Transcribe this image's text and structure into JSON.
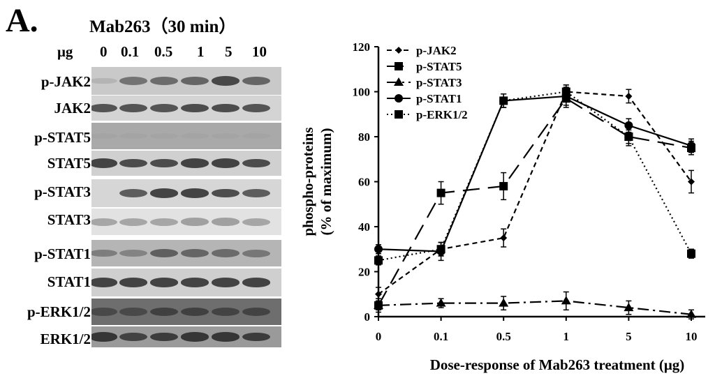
{
  "panel_label": "A.",
  "blot": {
    "treatment_title": "Mab263（30 min）",
    "dose_unit_label": "μg",
    "doses": [
      "0",
      "0.1",
      "0.5",
      "1",
      "5",
      "10"
    ],
    "rows": [
      {
        "label": "p-JAK2",
        "background": "#c9c9c9",
        "band_color": "#3a3a3a",
        "band_intensity": [
          0.15,
          0.6,
          0.65,
          0.7,
          0.9,
          0.7
        ]
      },
      {
        "label": "JAK2",
        "background": "#d4d4d4",
        "band_color": "#2a2a2a",
        "band_intensity": [
          0.75,
          0.75,
          0.75,
          0.8,
          0.8,
          0.75
        ]
      },
      {
        "label": "p-STAT5",
        "background": "#a9a9a9",
        "band_color": "#555555",
        "band_intensity": [
          0.05,
          0.05,
          0.05,
          0.05,
          0.05,
          0.05
        ]
      },
      {
        "label": "STAT5",
        "background": "#d0d0d0",
        "band_color": "#2a2a2a",
        "band_intensity": [
          0.85,
          0.8,
          0.8,
          0.85,
          0.85,
          0.8
        ]
      },
      {
        "label": "p-STAT3",
        "background": "#d6d6d6",
        "band_color": "#2a2a2a",
        "band_intensity": [
          0.0,
          0.7,
          0.85,
          0.85,
          0.8,
          0.7
        ]
      },
      {
        "label": "STAT3",
        "background": "#e2e2e2",
        "band_color": "#6a6a6a",
        "band_intensity": [
          0.5,
          0.5,
          0.5,
          0.55,
          0.55,
          0.5
        ]
      },
      {
        "label": "p-STAT1",
        "background": "#b5b5b5",
        "band_color": "#3a3a3a",
        "band_intensity": [
          0.45,
          0.4,
          0.7,
          0.65,
          0.6,
          0.5
        ]
      },
      {
        "label": "STAT1",
        "background": "#cfcfcf",
        "band_color": "#2a2a2a",
        "band_intensity": [
          0.85,
          0.85,
          0.85,
          0.85,
          0.85,
          0.85
        ]
      },
      {
        "label": "p-ERK1/2",
        "background": "#6e6e6e",
        "band_color": "#2c2c2c",
        "band_intensity": [
          0.55,
          0.55,
          0.7,
          0.7,
          0.65,
          0.65
        ]
      },
      {
        "label": "ERK1/2",
        "background": "#9a9a9a",
        "band_color": "#242424",
        "band_intensity": [
          0.85,
          0.75,
          0.8,
          0.85,
          0.85,
          0.8
        ]
      }
    ]
  },
  "chart_data": {
    "type": "line",
    "categories": [
      "0",
      "0.1",
      "0.5",
      "1",
      "5",
      "10"
    ],
    "ylim": [
      0,
      120
    ],
    "yticks": [
      0,
      20,
      40,
      60,
      80,
      100,
      120
    ],
    "ylabel_lines": [
      "phospho-proteins",
      "(% of maximum)"
    ],
    "xlabel": "Dose-response of Mab263 treatment (μg)",
    "legend_position": "top-left",
    "series": [
      {
        "name": "p-JAK2",
        "marker": "diamond",
        "dash": "7,5",
        "values": [
          10,
          30,
          35,
          100,
          98,
          60
        ],
        "errors": [
          3,
          3,
          4,
          3,
          3,
          5
        ]
      },
      {
        "name": "p-STAT5",
        "marker": "square",
        "dash": "24,12",
        "values": [
          5,
          55,
          58,
          97,
          80,
          75
        ],
        "errors": [
          3,
          5,
          6,
          4,
          4,
          3
        ]
      },
      {
        "name": "p-STAT3",
        "marker": "triangle",
        "dash": "16,6,3,6",
        "values": [
          5,
          6,
          6,
          7,
          4,
          1
        ],
        "errors": [
          2,
          2,
          3,
          4,
          3,
          2
        ]
      },
      {
        "name": "p-STAT1",
        "marker": "circle",
        "dash": "",
        "values": [
          30,
          29,
          96,
          98,
          85,
          76
        ],
        "errors": [
          2,
          4,
          3,
          4,
          3,
          3
        ]
      },
      {
        "name": "p-ERK1/2",
        "marker": "square",
        "dash": "2,4",
        "values": [
          25,
          30,
          96,
          100,
          80,
          28
        ],
        "errors": [
          2,
          3,
          3,
          3,
          3,
          2
        ]
      }
    ]
  }
}
